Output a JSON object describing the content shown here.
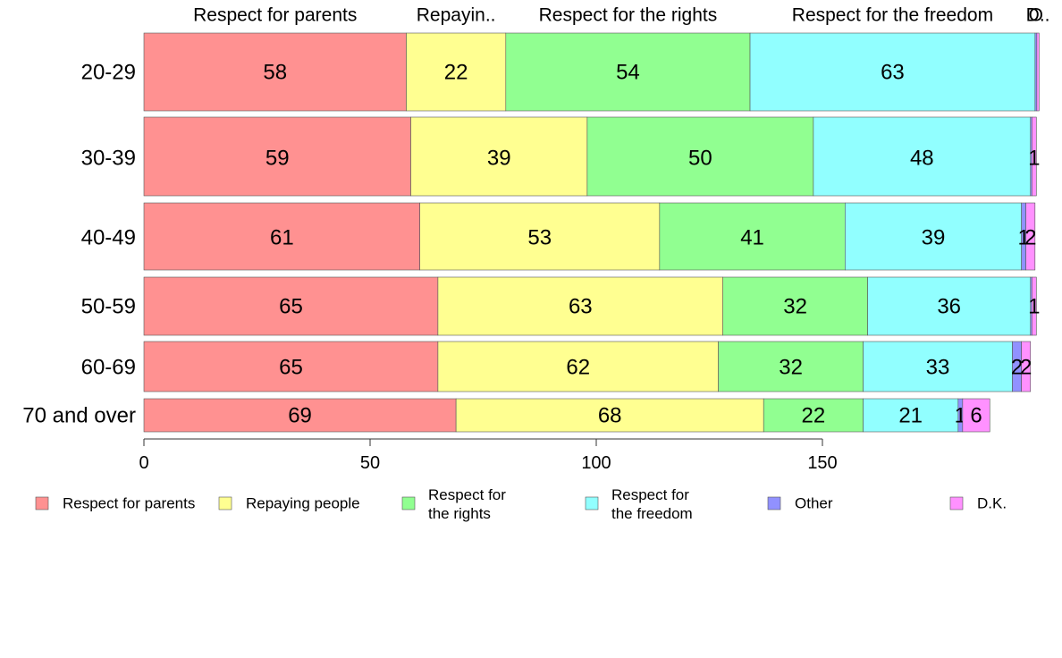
{
  "chart_data": {
    "type": "bar",
    "orientation": "horizontal",
    "stacked": true,
    "categories": [
      "20-29",
      "30-39",
      "40-49",
      "50-59",
      "60-69",
      "70 and over"
    ],
    "top_labels": [
      "Respect for parents",
      "Repayin..",
      "Respect for the rights",
      "Respect for the freedom",
      "O",
      "D.."
    ],
    "series": [
      {
        "name": "Respect for parents",
        "legend_label": [
          "Respect for parents"
        ],
        "color": "#ff9191",
        "values": [
          58,
          59,
          61,
          65,
          65,
          69
        ]
      },
      {
        "name": "Repaying people",
        "legend_label": [
          "Repaying people"
        ],
        "color": "#ffff91",
        "values": [
          22,
          39,
          53,
          63,
          62,
          68
        ]
      },
      {
        "name": "Respect for the rights",
        "legend_label": [
          "Respect for",
          "the rights"
        ],
        "color": "#91ff91",
        "values": [
          54,
          50,
          41,
          32,
          32,
          22
        ]
      },
      {
        "name": "Respect for the freedom",
        "legend_label": [
          "Respect for",
          "the freedom"
        ],
        "color": "#91ffff",
        "values": [
          63,
          48,
          39,
          36,
          33,
          21
        ]
      },
      {
        "name": "Other",
        "legend_label": [
          "Other"
        ],
        "color": "#9191ff",
        "values": [
          0.4,
          0.3,
          1,
          0.3,
          2,
          1
        ]
      },
      {
        "name": "D.K.",
        "legend_label": [
          "D.K."
        ],
        "color": "#ff91ff",
        "values": [
          0.5,
          1,
          2,
          1,
          2,
          6
        ]
      }
    ],
    "data_labels": [
      [
        "58",
        "22",
        "54",
        "63",
        "",
        ""
      ],
      [
        "59",
        "39",
        "50",
        "48",
        "",
        "1"
      ],
      [
        "61",
        "53",
        "41",
        "39",
        "1",
        "2"
      ],
      [
        "65",
        "63",
        "32",
        "36",
        "",
        "1"
      ],
      [
        "65",
        "62",
        "32",
        "33",
        "2",
        "2"
      ],
      [
        "69",
        "68",
        "22",
        "21",
        "1",
        "6"
      ]
    ],
    "xticks": [
      "0",
      "50",
      "100",
      "150"
    ],
    "xlim": [
      0,
      196
    ],
    "grid": false,
    "legend_position": "bottom"
  }
}
